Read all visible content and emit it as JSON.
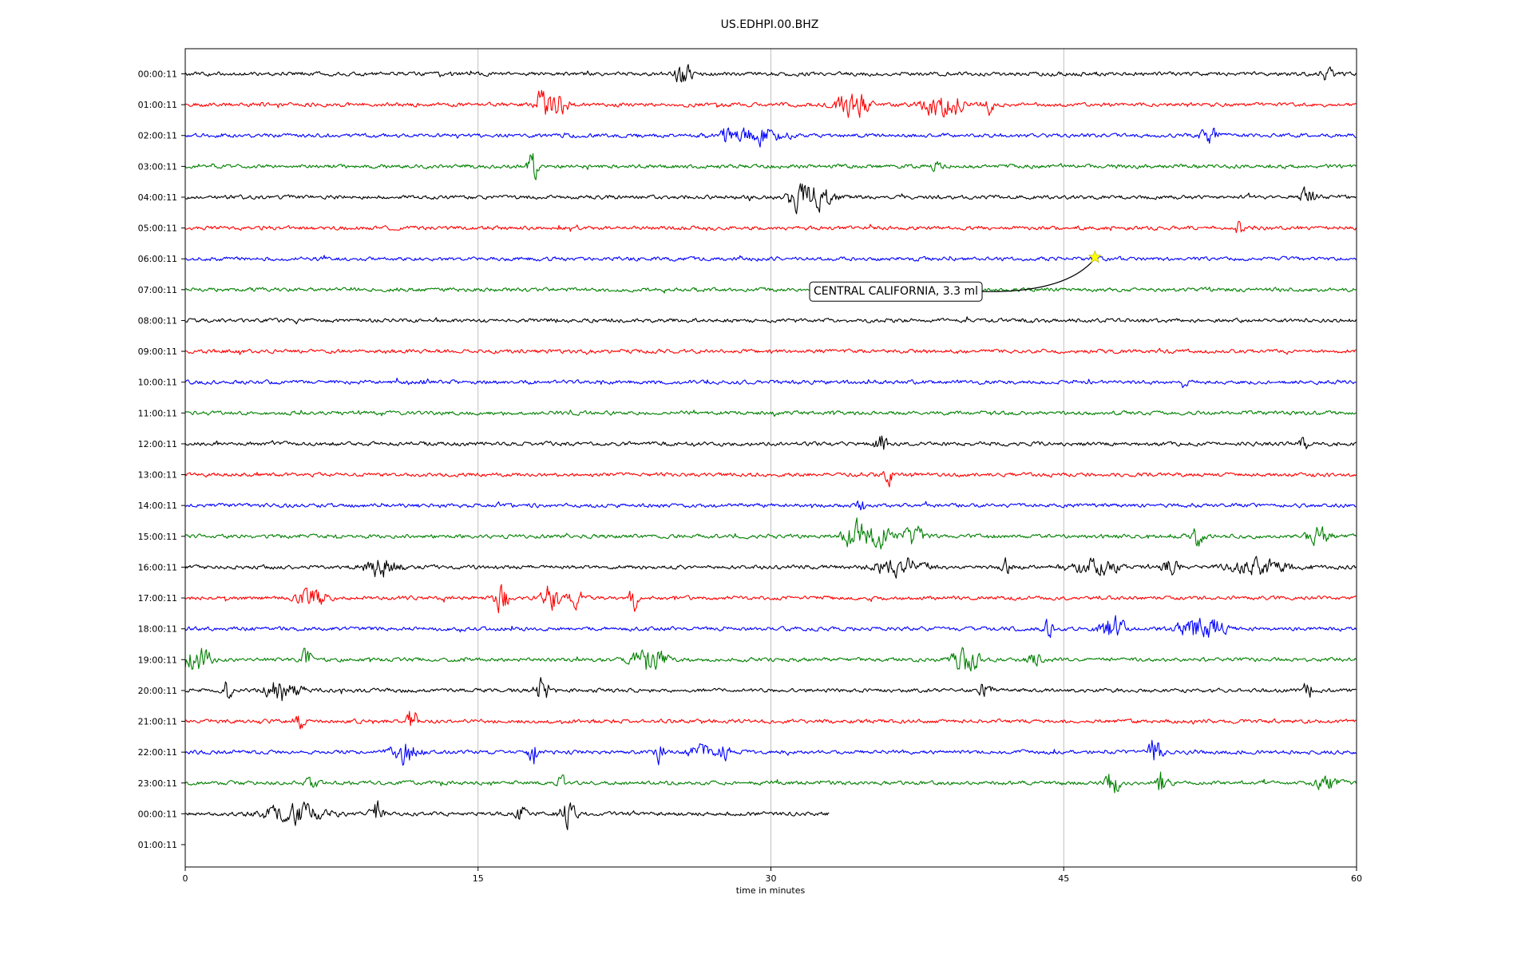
{
  "chart_data": {
    "type": "line",
    "title": "US.EDHPI.00.BHZ",
    "xlabel": "time in minutes",
    "ylabel": "",
    "xlim": [
      0,
      60
    ],
    "x_ticks": [
      0,
      15,
      30,
      45,
      60
    ],
    "x_tick_labels": [
      "0",
      "15",
      "30",
      "45",
      "60"
    ],
    "vertical_grid": true,
    "row_labels": [
      "00:00:11",
      "01:00:11",
      "02:00:11",
      "03:00:11",
      "04:00:11",
      "05:00:11",
      "06:00:11",
      "07:00:11",
      "08:00:11",
      "09:00:11",
      "10:00:11",
      "11:00:11",
      "12:00:11",
      "13:00:11",
      "14:00:11",
      "15:00:11",
      "16:00:11",
      "17:00:11",
      "18:00:11",
      "19:00:11",
      "20:00:11",
      "21:00:11",
      "22:00:11",
      "23:00:11",
      "00:00:11",
      "01:00:11"
    ],
    "trace_colors": [
      "#000000",
      "#ff0000",
      "#0000ff",
      "#008000"
    ],
    "traces": [
      {
        "row": 0,
        "end_minute": 60,
        "bursts": [
          [
            25.5,
            0.4,
            1.0
          ],
          [
            58.5,
            0.3,
            0.8
          ]
        ]
      },
      {
        "row": 1,
        "end_minute": 60,
        "bursts": [
          [
            18.3,
            0.2,
            2.5
          ],
          [
            18.8,
            0.6,
            2.0
          ],
          [
            34.2,
            0.7,
            1.6
          ],
          [
            38.8,
            0.8,
            1.8
          ],
          [
            41.2,
            0.2,
            0.7
          ]
        ]
      },
      {
        "row": 2,
        "end_minute": 60,
        "bursts": [
          [
            27.7,
            0.2,
            0.9
          ],
          [
            29.3,
            1.2,
            0.8
          ],
          [
            52.5,
            0.5,
            0.6
          ]
        ]
      },
      {
        "row": 3,
        "end_minute": 60,
        "bursts": [
          [
            17.8,
            0.2,
            2.0
          ],
          [
            38.5,
            0.2,
            0.5
          ]
        ]
      },
      {
        "row": 4,
        "end_minute": 60,
        "bursts": [
          [
            31.3,
            0.5,
            1.2
          ],
          [
            32.2,
            0.8,
            1.6
          ],
          [
            32.5,
            0.15,
            4.2
          ],
          [
            57.5,
            0.4,
            0.7
          ]
        ]
      },
      {
        "row": 5,
        "end_minute": 60,
        "bursts": [
          [
            54.0,
            0.2,
            0.7
          ]
        ]
      },
      {
        "row": 6,
        "end_minute": 60,
        "bursts": []
      },
      {
        "row": 7,
        "end_minute": 60,
        "bursts": []
      },
      {
        "row": 8,
        "end_minute": 60,
        "bursts": []
      },
      {
        "row": 9,
        "end_minute": 60,
        "bursts": []
      },
      {
        "row": 10,
        "end_minute": 60,
        "bursts": [
          [
            51.2,
            0.2,
            0.5
          ]
        ]
      },
      {
        "row": 11,
        "end_minute": 60,
        "bursts": []
      },
      {
        "row": 12,
        "end_minute": 60,
        "bursts": [
          [
            35.6,
            0.3,
            0.9
          ],
          [
            57.3,
            0.2,
            0.7
          ]
        ]
      },
      {
        "row": 13,
        "end_minute": 60,
        "bursts": [
          [
            36.0,
            0.2,
            0.9
          ]
        ]
      },
      {
        "row": 14,
        "end_minute": 60,
        "bursts": [
          [
            34.6,
            0.15,
            1.6
          ]
        ]
      },
      {
        "row": 15,
        "end_minute": 60,
        "bursts": [
          [
            34.5,
            0.6,
            2.2
          ],
          [
            34.7,
            0.12,
            3.5
          ],
          [
            35.5,
            0.6,
            1.2
          ],
          [
            37.3,
            0.5,
            1.1
          ],
          [
            51.8,
            0.3,
            0.9
          ],
          [
            58.0,
            0.6,
            0.8
          ]
        ]
      },
      {
        "row": 16,
        "end_minute": 60,
        "bursts": [
          [
            10.0,
            0.8,
            1.0
          ],
          [
            36.5,
            1.2,
            0.8
          ],
          [
            42.0,
            0.3,
            0.7
          ],
          [
            46.5,
            1.2,
            0.7
          ],
          [
            50.5,
            0.5,
            0.7
          ],
          [
            55.0,
            1.5,
            0.6
          ]
        ]
      },
      {
        "row": 17,
        "end_minute": 60,
        "bursts": [
          [
            6.5,
            0.7,
            0.8
          ],
          [
            16.2,
            0.3,
            1.3
          ],
          [
            18.8,
            0.5,
            1.2
          ],
          [
            20.0,
            0.3,
            1.0
          ],
          [
            23.0,
            0.2,
            1.8
          ]
        ]
      },
      {
        "row": 18,
        "end_minute": 60,
        "bursts": [
          [
            44.2,
            0.2,
            1.6
          ],
          [
            47.5,
            0.6,
            1.0
          ],
          [
            52.0,
            1.0,
            1.4
          ],
          [
            52.3,
            0.15,
            1.6
          ]
        ]
      },
      {
        "row": 19,
        "end_minute": 60,
        "bursts": [
          [
            0.5,
            0.8,
            1.3
          ],
          [
            6.2,
            0.2,
            1.3
          ],
          [
            23.8,
            0.7,
            1.4
          ],
          [
            40.0,
            0.6,
            1.5
          ],
          [
            43.5,
            0.3,
            0.7
          ]
        ]
      },
      {
        "row": 20,
        "end_minute": 60,
        "bursts": [
          [
            2.2,
            0.15,
            1.6
          ],
          [
            5.0,
            0.8,
            1.1
          ],
          [
            18.3,
            0.4,
            1.1
          ],
          [
            41.0,
            0.3,
            0.7
          ],
          [
            57.5,
            0.15,
            1.5
          ]
        ]
      },
      {
        "row": 21,
        "end_minute": 60,
        "bursts": [
          [
            5.9,
            0.2,
            0.9
          ],
          [
            11.6,
            0.2,
            1.8
          ]
        ]
      },
      {
        "row": 22,
        "end_minute": 60,
        "bursts": [
          [
            11.2,
            0.6,
            1.1
          ],
          [
            17.8,
            0.2,
            1.5
          ],
          [
            24.3,
            0.2,
            1.6
          ],
          [
            26.3,
            0.6,
            0.8
          ],
          [
            27.6,
            0.3,
            0.7
          ],
          [
            49.7,
            0.3,
            1.5
          ]
        ]
      },
      {
        "row": 23,
        "end_minute": 60,
        "bursts": [
          [
            6.5,
            0.3,
            0.6
          ],
          [
            19.3,
            0.2,
            0.7
          ],
          [
            47.5,
            0.3,
            1.3
          ],
          [
            50.0,
            0.3,
            1.3
          ],
          [
            58.5,
            0.6,
            0.6
          ]
        ]
      },
      {
        "row": 24,
        "end_minute": 33,
        "bursts": [
          [
            5.5,
            1.5,
            0.8
          ],
          [
            9.8,
            0.3,
            1.0
          ],
          [
            17.2,
            0.2,
            1.1
          ],
          [
            19.6,
            0.4,
            1.0
          ]
        ]
      }
    ],
    "event": {
      "row": 6,
      "minute": 46.6,
      "marker": "star",
      "marker_color": "#ffff00",
      "label": "CENTRAL CALIFORNIA, 3.3 ml"
    }
  }
}
